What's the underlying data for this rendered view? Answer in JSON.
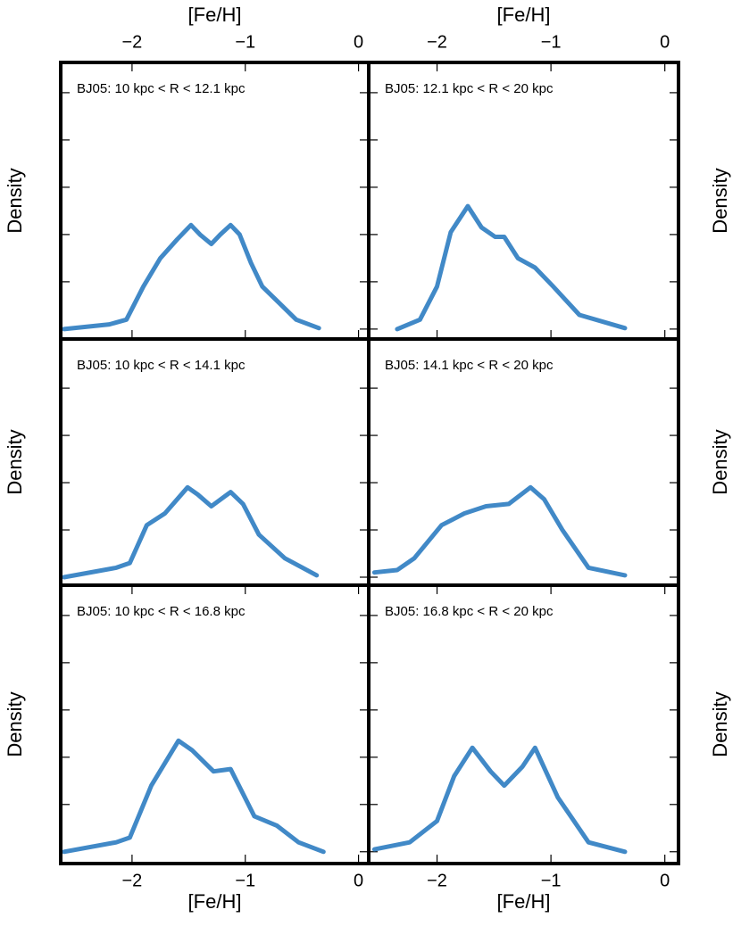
{
  "chart_data": [
    {
      "type": "line",
      "annotation": "BJ05: 10 kpc < R < 12.1 kpc",
      "ylabel": "Density",
      "xlabel": "[Fe/H]",
      "xlabel_side": "top",
      "xlim": [
        -2.63,
        0.09
      ],
      "xticks": [
        {
          "value": -2,
          "label": "−2"
        },
        {
          "value": -1,
          "label": "−1"
        },
        0
      ],
      "ylim": [
        -0.21,
        5.64
      ],
      "yticks": [
        0,
        1,
        2,
        3,
        4,
        5
      ],
      "color": "#4189c7",
      "x": [
        -2.6,
        -2.2,
        -2.05,
        -1.9,
        -1.75,
        -1.6,
        -1.48,
        -1.4,
        -1.3,
        -1.22,
        -1.13,
        -1.05,
        -0.95,
        -0.85,
        -0.7,
        -0.55,
        -0.35
      ],
      "values": [
        0.0,
        0.1,
        0.2,
        0.9,
        1.5,
        1.9,
        2.2,
        2.0,
        1.8,
        2.0,
        2.2,
        2.0,
        1.4,
        0.9,
        0.55,
        0.2,
        0.02
      ]
    },
    {
      "type": "line",
      "annotation": "BJ05: 12.1 kpc < R < 20 kpc",
      "ylabel": "Density",
      "xlabel": "[Fe/H]",
      "xlabel_side": "top",
      "xlim": [
        -2.6,
        0.12
      ],
      "xticks": [
        {
          "value": -2,
          "label": "−2"
        },
        {
          "value": -1,
          "label": "−1"
        },
        0
      ],
      "ylim": [
        -0.21,
        5.64
      ],
      "yticks": [
        0,
        1,
        2,
        3,
        4,
        5
      ],
      "color": "#4189c7",
      "x": [
        -2.35,
        -2.15,
        -2.0,
        -1.88,
        -1.73,
        -1.61,
        -1.49,
        -1.41,
        -1.29,
        -1.14,
        -0.98,
        -0.75,
        -0.35
      ],
      "values": [
        0.0,
        0.2,
        0.9,
        2.05,
        2.6,
        2.15,
        1.95,
        1.95,
        1.5,
        1.3,
        0.9,
        0.3,
        0.02
      ]
    },
    {
      "type": "line",
      "annotation": "BJ05: 10 kpc < R < 14.1 kpc",
      "ylabel": "Density",
      "xlim": [
        -2.63,
        0.09
      ],
      "ylim": [
        -0.17,
        5.04
      ],
      "yticks": [
        0,
        1,
        2,
        3,
        4
      ],
      "color": "#4189c7",
      "x": [
        -2.6,
        -2.14,
        -2.02,
        -1.87,
        -1.71,
        -1.51,
        -1.42,
        -1.3,
        -1.13,
        -1.02,
        -0.88,
        -0.65,
        -0.37
      ],
      "values": [
        0.0,
        0.2,
        0.3,
        1.1,
        1.35,
        1.9,
        1.75,
        1.5,
        1.8,
        1.55,
        0.9,
        0.4,
        0.04
      ]
    },
    {
      "type": "line",
      "annotation": "BJ05: 14.1 kpc < R < 20 kpc",
      "ylabel": "Density",
      "xlim": [
        -2.6,
        0.12
      ],
      "ylim": [
        -0.17,
        5.04
      ],
      "yticks": [
        0,
        1,
        2,
        3,
        4
      ],
      "color": "#4189c7",
      "x": [
        -2.55,
        -2.35,
        -2.2,
        -1.96,
        -1.76,
        -1.57,
        -1.37,
        -1.18,
        -1.06,
        -0.9,
        -0.67,
        -0.35
      ],
      "values": [
        0.1,
        0.15,
        0.4,
        1.1,
        1.35,
        1.5,
        1.55,
        1.9,
        1.65,
        1.0,
        0.2,
        0.04
      ]
    },
    {
      "type": "line",
      "annotation": "BJ05: 10 kpc < R < 16.8 kpc",
      "ylabel": "Density",
      "xlabel": "[Fe/H]",
      "xlabel_side": "bottom",
      "xlim": [
        -2.63,
        0.09
      ],
      "xticks": [
        {
          "value": -2,
          "label": "−2"
        },
        {
          "value": -1,
          "label": "−1"
        },
        0
      ],
      "ylim": [
        -0.25,
        5.64
      ],
      "yticks": [
        0,
        1,
        2,
        3,
        4,
        5
      ],
      "color": "#4189c7",
      "x": [
        -2.6,
        -2.14,
        -2.02,
        -1.83,
        -1.59,
        -1.47,
        -1.28,
        -1.13,
        -0.92,
        -0.72,
        -0.53,
        -0.31
      ],
      "values": [
        0.0,
        0.2,
        0.3,
        1.4,
        2.35,
        2.15,
        1.7,
        1.75,
        0.75,
        0.55,
        0.2,
        0.0
      ]
    },
    {
      "type": "line",
      "annotation": "BJ05: 16.8 kpc < R < 20 kpc",
      "ylabel": "Density",
      "xlabel": "[Fe/H]",
      "xlabel_side": "bottom",
      "xlim": [
        -2.6,
        0.12
      ],
      "xticks": [
        {
          "value": -2,
          "label": "−2"
        },
        {
          "value": -1,
          "label": "−1"
        },
        0
      ],
      "ylim": [
        -0.25,
        5.64
      ],
      "yticks": [
        0,
        1,
        2,
        3,
        4,
        5
      ],
      "color": "#4189c7",
      "x": [
        -2.55,
        -2.24,
        -2.0,
        -1.85,
        -1.69,
        -1.53,
        -1.41,
        -1.25,
        -1.14,
        -0.94,
        -0.67,
        -0.35
      ],
      "values": [
        0.05,
        0.2,
        0.65,
        1.6,
        2.2,
        1.7,
        1.4,
        1.8,
        2.2,
        1.15,
        0.2,
        0.0
      ]
    }
  ]
}
